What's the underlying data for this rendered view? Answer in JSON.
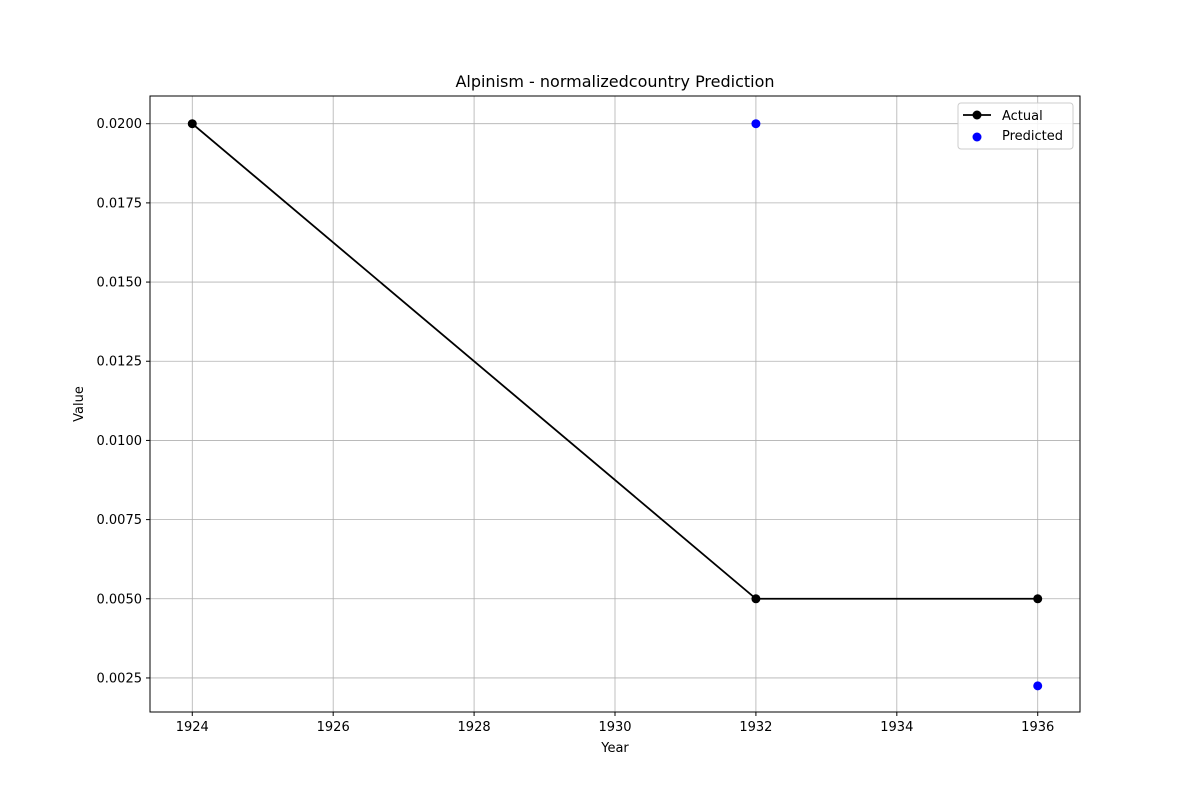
{
  "chart_data": {
    "type": "line",
    "title": "Alpinism - normalizedcountry Prediction",
    "xlabel": "Year",
    "ylabel": "Value",
    "xlim": [
      1923.4,
      1936.6
    ],
    "ylim": [
      0.001425,
      0.020875
    ],
    "x_ticks": [
      1924,
      1926,
      1928,
      1930,
      1932,
      1934,
      1936
    ],
    "y_ticks": [
      0.0025,
      0.005,
      0.0075,
      0.01,
      0.0125,
      0.015,
      0.0175,
      0.02
    ],
    "y_tick_labels": [
      "0.0025",
      "0.0050",
      "0.0075",
      "0.0100",
      "0.0125",
      "0.0150",
      "0.0175",
      "0.0200"
    ],
    "grid": true,
    "legend_position": "top-right",
    "series": [
      {
        "name": "Actual",
        "kind": "line-marker",
        "color": "#000000",
        "points": [
          {
            "x": 1924,
            "y": 0.02
          },
          {
            "x": 1932,
            "y": 0.005
          },
          {
            "x": 1936,
            "y": 0.005
          }
        ]
      },
      {
        "name": "Predicted",
        "kind": "scatter",
        "color": "#0000ff",
        "points": [
          {
            "x": 1932,
            "y": 0.02
          },
          {
            "x": 1936,
            "y": 0.00225
          }
        ]
      }
    ]
  }
}
